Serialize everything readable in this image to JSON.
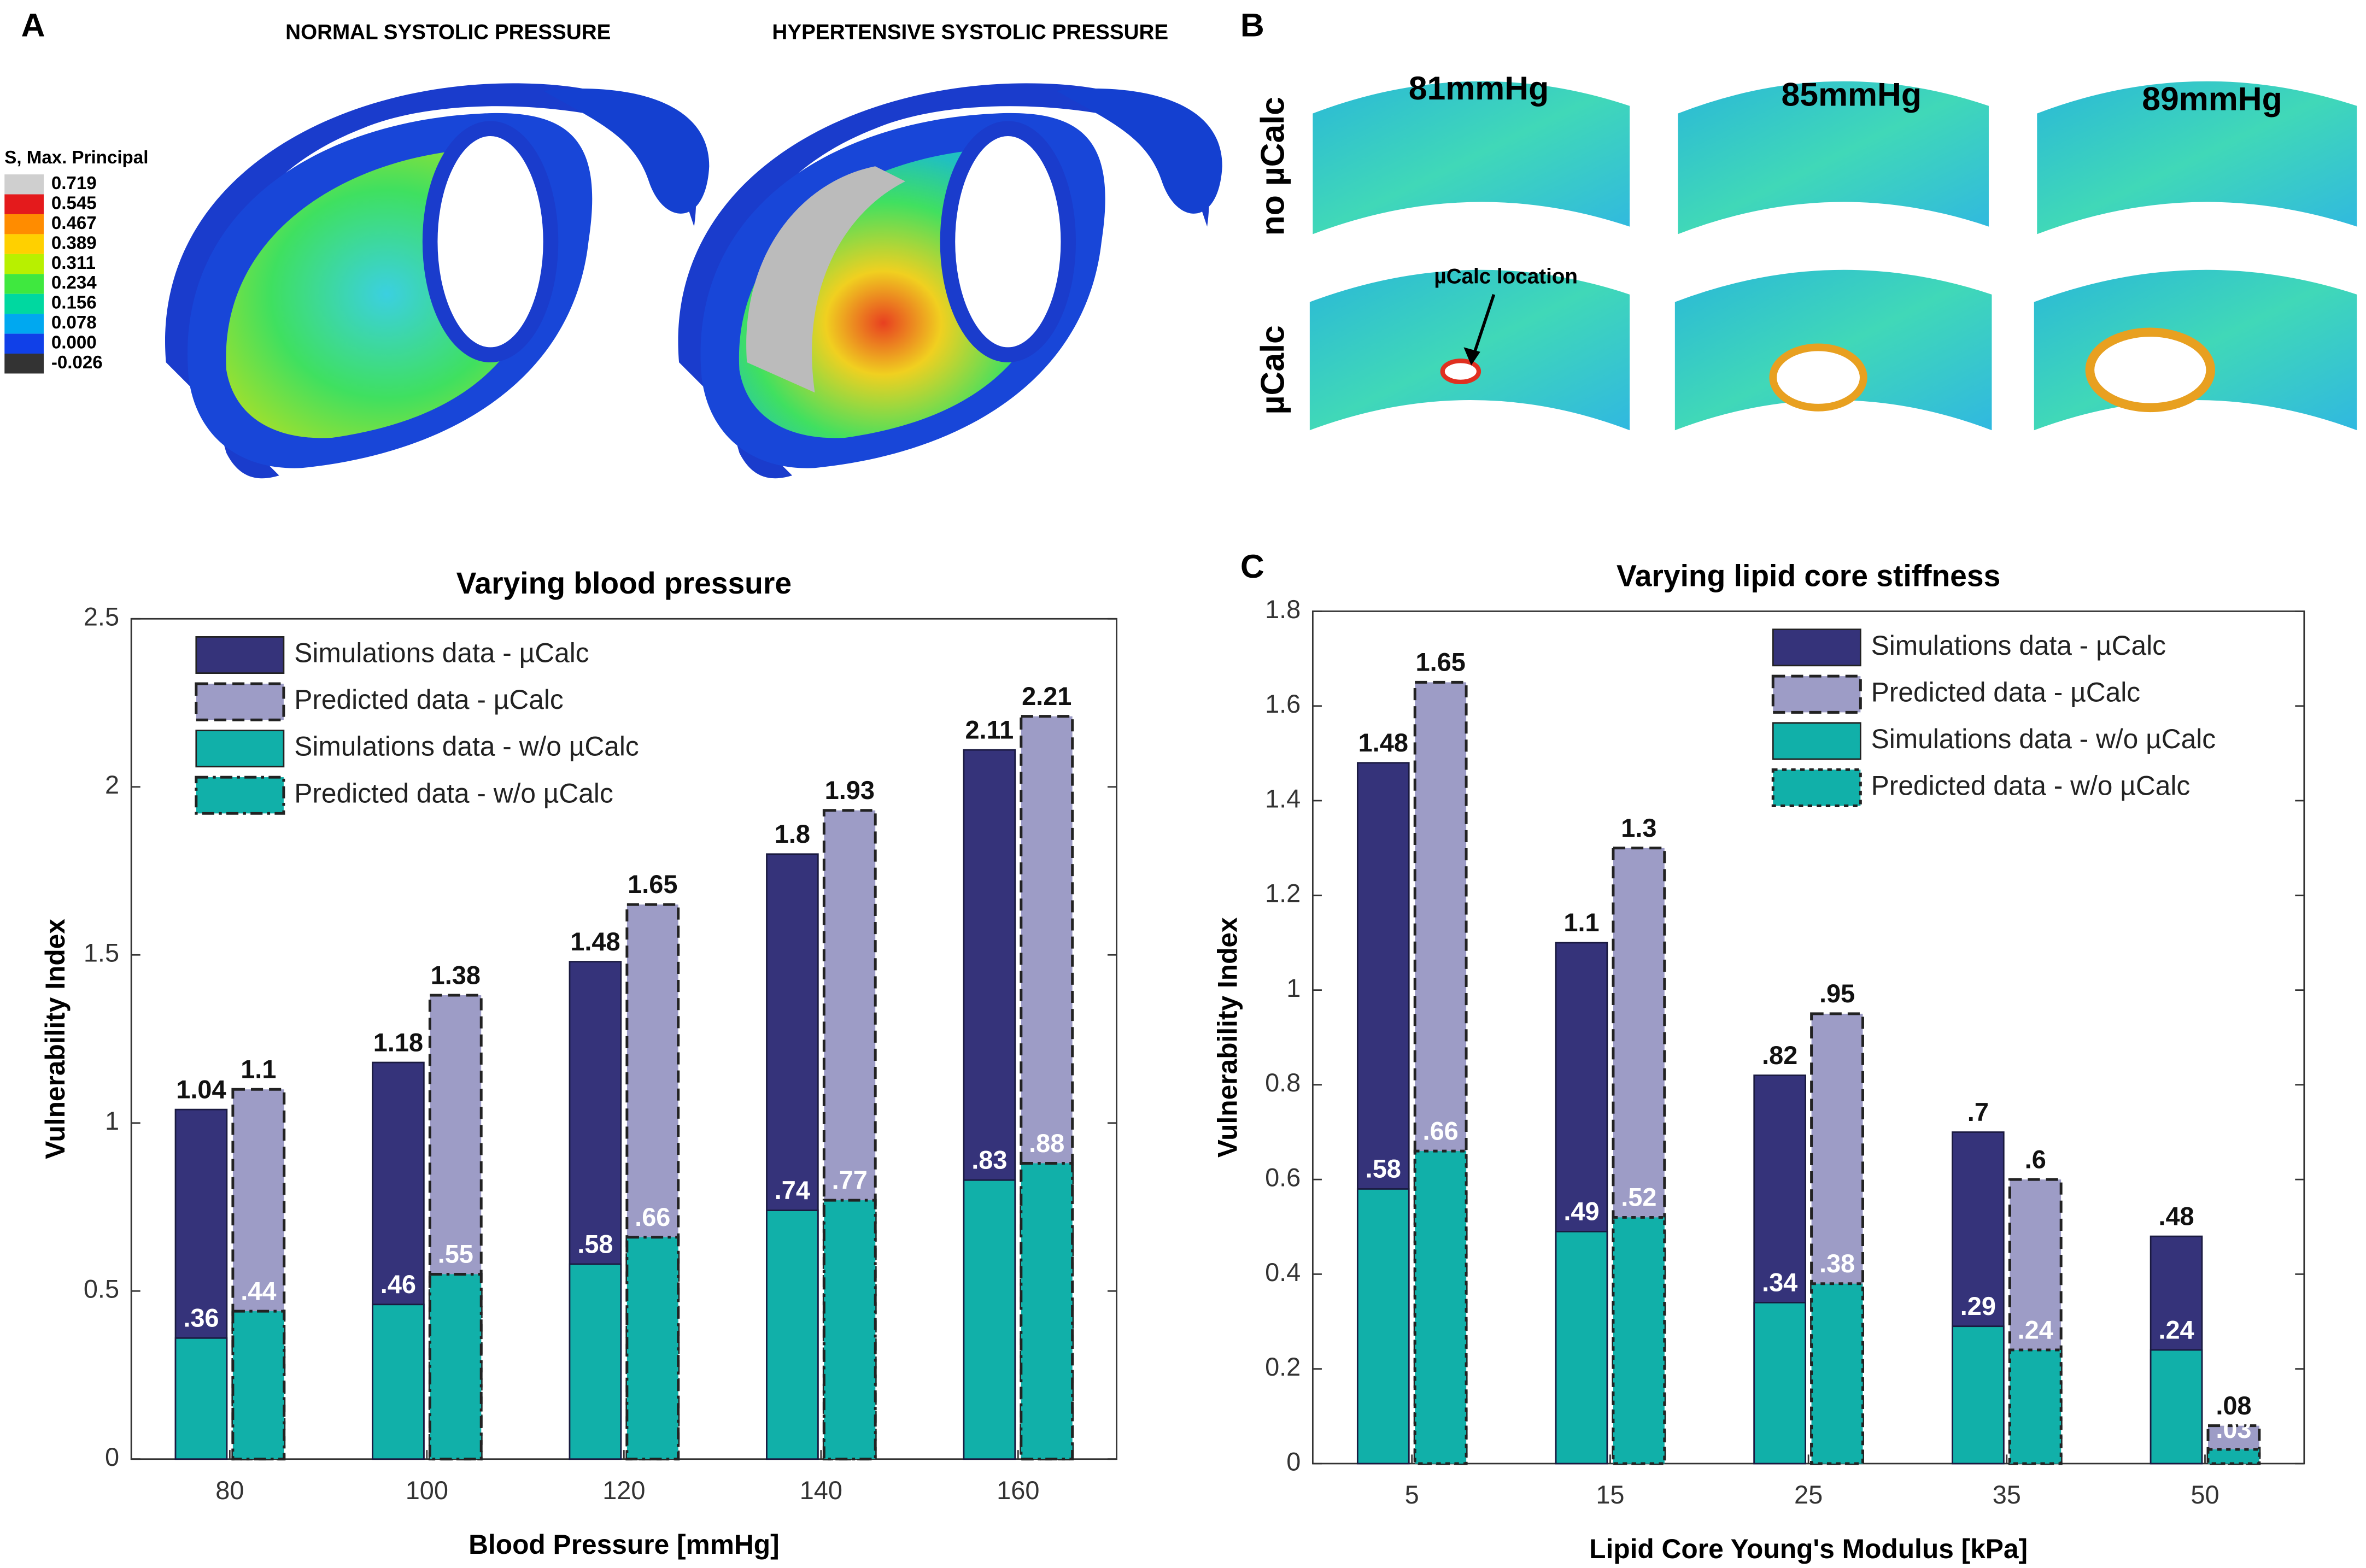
{
  "panel_a": {
    "label": "A",
    "titles": [
      "NORMAL SYSTOLIC PRESSURE",
      "HYPERTENSIVE SYSTOLIC PRESSURE"
    ],
    "colorbar_title": "S, Max. Principal",
    "colorbar_ticks": [
      0.719,
      0.545,
      0.467,
      0.389,
      0.311,
      0.234,
      0.156,
      0.078,
      {
        "value": 0,
        "label": "0.000"
      },
      -0.026
    ],
    "colorbar_colors": [
      "#cfcfcf",
      "#e41a1c",
      "#ff8c00",
      "#ffd000",
      "#b8f000",
      "#3fe83f",
      "#00d8a0",
      "#00a8f0",
      "#1040e8",
      "#333333"
    ]
  },
  "panel_b": {
    "label": "B",
    "columns": [
      "81mmHg",
      "85mmHg",
      "89mmHg"
    ],
    "rows": [
      "no µCalc",
      "µCalc"
    ],
    "annotation": "µCalc location"
  },
  "chart_data": [
    {
      "type": "bar",
      "title": "Varying blood pressure",
      "xlabel": "Blood Pressure [mmHg]",
      "ylabel": "Vulnerability Index",
      "categories": [
        "80",
        "100",
        "120",
        "140",
        "160"
      ],
      "ylim": [
        0,
        2.5
      ],
      "yticks": [
        0,
        0.5,
        1,
        1.5,
        2,
        2.5
      ],
      "legend": "upper left",
      "series": [
        {
          "name": "Simulations data - µCalc",
          "color": "#35337a",
          "border": "solid",
          "values": [
            1.04,
            1.18,
            1.48,
            1.8,
            2.11
          ],
          "value_labels": [
            "1.04",
            "1.18",
            "1.48",
            "1.8",
            "2.11"
          ]
        },
        {
          "name": "Predicted data - µCalc",
          "color": "#9d9cc6",
          "border": "dashed",
          "values": [
            1.1,
            1.38,
            1.65,
            1.93,
            2.21
          ],
          "value_labels": [
            "1.1",
            "1.38",
            "1.65",
            "1.93",
            "2.21"
          ]
        },
        {
          "name": "Simulations data - w/o µCalc",
          "color": "#11b0a9",
          "border": "solid",
          "values": [
            0.36,
            0.46,
            0.58,
            0.74,
            0.83
          ],
          "value_labels": [
            ".36",
            ".46",
            ".58",
            ".74",
            ".83"
          ]
        },
        {
          "name": "Predicted data - w/o µCalc",
          "color": "#11b0a9",
          "border": "dashdot",
          "values": [
            0.44,
            0.55,
            0.66,
            0.77,
            0.88
          ],
          "value_labels": [
            ".44",
            ".55",
            ".66",
            ".77",
            ".88"
          ]
        }
      ]
    },
    {
      "type": "bar",
      "panel_label": "C",
      "title": "Varying lipid core stiffness",
      "xlabel": "Lipid Core Young's Modulus [kPa]",
      "ylabel": "Vulnerability Index",
      "categories": [
        "5",
        "15",
        "25",
        "35",
        "50"
      ],
      "ylim": [
        0,
        1.8
      ],
      "yticks": [
        0,
        0.2,
        0.4,
        0.6,
        0.8,
        1,
        1.2,
        1.4,
        1.6,
        1.8
      ],
      "legend": "upper right",
      "series": [
        {
          "name": "Simulations data - µCalc",
          "color": "#35337a",
          "border": "solid",
          "values": [
            1.48,
            1.1,
            0.82,
            0.7,
            0.48
          ],
          "value_labels": [
            "1.48",
            "1.1",
            ".82",
            ".7",
            ".48"
          ]
        },
        {
          "name": "Predicted data - µCalc",
          "color": "#9d9cc6",
          "border": "dashed",
          "values": [
            1.65,
            1.3,
            0.95,
            0.6,
            0.08
          ],
          "value_labels": [
            "1.65",
            "1.3",
            ".95",
            ".6",
            ".08"
          ]
        },
        {
          "name": "Simulations data - w/o µCalc",
          "color": "#11b0a9",
          "border": "solid",
          "values": [
            0.58,
            0.49,
            0.34,
            0.29,
            0.24
          ],
          "value_labels": [
            ".58",
            ".49",
            ".34",
            ".29",
            ".24"
          ]
        },
        {
          "name": "Predicted data - w/o µCalc",
          "color": "#11b0a9",
          "border": "dotted",
          "values": [
            0.66,
            0.52,
            0.38,
            0.24,
            0.03
          ],
          "value_labels": [
            ".66",
            ".52",
            ".38",
            ".24",
            ".03"
          ]
        }
      ]
    }
  ]
}
